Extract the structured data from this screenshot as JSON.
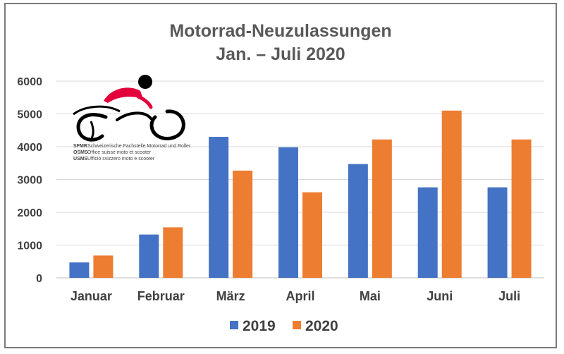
{
  "chart_data": {
    "type": "bar",
    "title": "Motorrad-Neuzulassungen",
    "subtitle": "Jan. – Juli 2020",
    "categories": [
      "Januar",
      "Februar",
      "März",
      "April",
      "Mai",
      "Juni",
      "Juli"
    ],
    "series": [
      {
        "name": "2019",
        "color": "#4472C4",
        "values": [
          470,
          1320,
          4300,
          3980,
          3470,
          2760,
          2760
        ]
      },
      {
        "name": "2020",
        "color": "#ED7D31",
        "values": [
          680,
          1540,
          3270,
          2610,
          4220,
          5100,
          4220
        ]
      }
    ],
    "ylim": [
      0,
      6000
    ],
    "yticks": [
      0,
      1000,
      2000,
      3000,
      4000,
      5000,
      6000
    ],
    "grid": true,
    "legend": "bottom"
  },
  "logo": {
    "lines": [
      {
        "abbr": "SFMR",
        "text": "Schweizerische Fachstelle Motorrad und Roller"
      },
      {
        "abbr": "OSMS",
        "text": "Office suisse moto et scooter"
      },
      {
        "abbr": "USMS",
        "text": "Ufficio svizzero moto e scooter"
      }
    ],
    "accent_color": "#E4003A"
  }
}
